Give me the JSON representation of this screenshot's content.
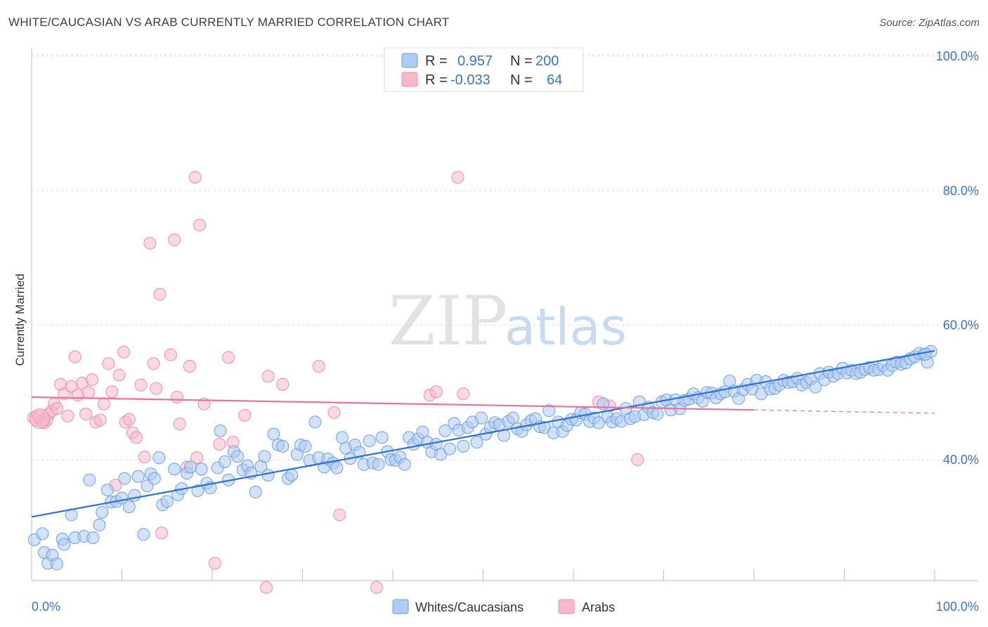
{
  "header": {
    "title": "WHITE/CAUCASIAN VS ARAB CURRENTLY MARRIED CORRELATION CHART",
    "source": "Source: ZipAtlas.com"
  },
  "watermark": {
    "zip": "ZIP",
    "atlas": "atlas"
  },
  "legend": {
    "rows": [
      {
        "r_label": "R =",
        "r_value": "0.957",
        "n_label": "N =",
        "n_value": "200",
        "color": "#aecbf2"
      },
      {
        "r_label": "R =",
        "r_value": "-0.033",
        "n_label": "N =",
        "n_value": "64",
        "color": "#f7b8cb"
      }
    ]
  },
  "bottom_legend": [
    {
      "label": "Whites/Caucasians",
      "color": "#aecbf2"
    },
    {
      "label": "Arabs",
      "color": "#f7b8cb"
    }
  ],
  "colors": {
    "blue_fill": "#aecbf2",
    "blue_stroke": "#6c9fe0",
    "blue_line": "#2f6fcf",
    "pink_fill": "#f7b8cb",
    "pink_stroke": "#ec8dab",
    "pink_line": "#e8729a",
    "tick_text": "#3b73c8",
    "grid": "#d9d9d9"
  },
  "chart_data": {
    "type": "scatter",
    "title": "WHITE/CAUCASIAN VS ARAB CURRENTLY MARRIED CORRELATION CHART",
    "xlabel": "",
    "ylabel": "Currently Married",
    "xlim": [
      0,
      100
    ],
    "ylim": [
      20,
      102
    ],
    "x_tick_labels": [
      "0.0%",
      "100.0%"
    ],
    "y_ticks": [
      40,
      60,
      80,
      100
    ],
    "y_tick_labels": [
      "40.0%",
      "60.0%",
      "80.0%",
      "100.0%"
    ],
    "grid": true,
    "legend_position": "top-center",
    "series": [
      {
        "name": "Whites/Caucasians",
        "R": 0.957,
        "N": 200,
        "trend": {
          "x": [
            0,
            100
          ],
          "y": [
            31.5,
            56.2
          ]
        },
        "points": [
          [
            0.3,
            28.1
          ],
          [
            1.2,
            29.0
          ],
          [
            1.4,
            26.2
          ],
          [
            1.8,
            24.6
          ],
          [
            2.3,
            25.8
          ],
          [
            2.8,
            24.5
          ],
          [
            3.4,
            28.2
          ],
          [
            3.6,
            27.4
          ],
          [
            4.4,
            31.8
          ],
          [
            4.8,
            28.4
          ],
          [
            5.8,
            28.6
          ],
          [
            6.4,
            37.0
          ],
          [
            6.8,
            28.4
          ],
          [
            7.5,
            30.3
          ],
          [
            7.8,
            32.2
          ],
          [
            8.4,
            35.5
          ],
          [
            8.8,
            33.7
          ],
          [
            9.4,
            33.8
          ],
          [
            10.0,
            34.3
          ],
          [
            10.3,
            37.2
          ],
          [
            10.8,
            33.0
          ],
          [
            11.4,
            34.7
          ],
          [
            11.8,
            37.5
          ],
          [
            12.4,
            28.9
          ],
          [
            12.8,
            36.1
          ],
          [
            13.2,
            37.9
          ],
          [
            13.6,
            37.2
          ],
          [
            14.1,
            40.3
          ],
          [
            14.5,
            33.3
          ],
          [
            15.0,
            33.8
          ],
          [
            15.8,
            38.6
          ],
          [
            16.2,
            34.8
          ],
          [
            16.6,
            35.7
          ],
          [
            17.2,
            38.0
          ],
          [
            17.6,
            38.9
          ],
          [
            18.4,
            35.4
          ],
          [
            18.8,
            38.6
          ],
          [
            19.4,
            36.5
          ],
          [
            19.8,
            35.8
          ],
          [
            20.6,
            38.8
          ],
          [
            20.9,
            44.3
          ],
          [
            21.4,
            39.7
          ],
          [
            21.8,
            37.0
          ],
          [
            22.4,
            41.2
          ],
          [
            22.8,
            40.5
          ],
          [
            23.4,
            38.5
          ],
          [
            23.9,
            39.1
          ],
          [
            24.3,
            38.0
          ],
          [
            24.8,
            35.2
          ],
          [
            25.4,
            39.0
          ],
          [
            25.8,
            40.5
          ],
          [
            26.2,
            37.7
          ],
          [
            26.8,
            43.8
          ],
          [
            27.3,
            42.2
          ],
          [
            27.8,
            42.0
          ],
          [
            28.4,
            37.2
          ],
          [
            28.8,
            37.7
          ],
          [
            29.4,
            40.8
          ],
          [
            29.8,
            42.2
          ],
          [
            30.3,
            42.0
          ],
          [
            30.8,
            39.9
          ],
          [
            31.4,
            45.6
          ],
          [
            31.8,
            40.3
          ],
          [
            32.4,
            38.9
          ],
          [
            32.8,
            40.1
          ],
          [
            33.4,
            39.5
          ],
          [
            33.8,
            38.8
          ],
          [
            34.4,
            43.3
          ],
          [
            34.8,
            41.7
          ],
          [
            35.3,
            40.2
          ],
          [
            35.8,
            42.2
          ],
          [
            36.3,
            41.1
          ],
          [
            36.8,
            39.3
          ],
          [
            37.4,
            42.8
          ],
          [
            37.8,
            39.5
          ],
          [
            38.4,
            39.3
          ],
          [
            38.8,
            43.3
          ],
          [
            39.4,
            41.2
          ],
          [
            39.8,
            40.0
          ],
          [
            40.3,
            39.9
          ],
          [
            40.8,
            40.4
          ],
          [
            41.3,
            39.3
          ],
          [
            41.8,
            43.3
          ],
          [
            42.3,
            42.3
          ],
          [
            42.8,
            43.1
          ],
          [
            43.3,
            44.1
          ],
          [
            43.8,
            42.6
          ],
          [
            44.3,
            41.2
          ],
          [
            44.8,
            42.3
          ],
          [
            45.3,
            40.8
          ],
          [
            45.8,
            44.3
          ],
          [
            46.3,
            41.6
          ],
          [
            46.8,
            45.4
          ],
          [
            47.3,
            44.4
          ],
          [
            47.8,
            42.0
          ],
          [
            48.3,
            44.8
          ],
          [
            48.8,
            45.6
          ],
          [
            49.3,
            42.6
          ],
          [
            49.8,
            46.2
          ],
          [
            50.3,
            43.8
          ],
          [
            50.8,
            44.8
          ],
          [
            51.3,
            45.5
          ],
          [
            51.8,
            45.2
          ],
          [
            52.3,
            43.6
          ],
          [
            52.8,
            45.7
          ],
          [
            53.3,
            46.2
          ],
          [
            53.8,
            44.6
          ],
          [
            54.3,
            44.2
          ],
          [
            54.8,
            45.2
          ],
          [
            55.3,
            45.8
          ],
          [
            55.8,
            46.1
          ],
          [
            56.3,
            44.9
          ],
          [
            56.8,
            44.8
          ],
          [
            57.3,
            47.3
          ],
          [
            57.8,
            44.0
          ],
          [
            58.3,
            45.6
          ],
          [
            58.8,
            44.2
          ],
          [
            59.3,
            45.1
          ],
          [
            59.8,
            46.0
          ],
          [
            60.3,
            45.9
          ],
          [
            60.8,
            47.0
          ],
          [
            61.3,
            46.8
          ],
          [
            61.8,
            45.7
          ],
          [
            62.3,
            46.2
          ],
          [
            62.8,
            45.5
          ],
          [
            63.3,
            48.3
          ],
          [
            63.8,
            46.4
          ],
          [
            64.3,
            45.6
          ],
          [
            64.8,
            46.1
          ],
          [
            65.3,
            45.7
          ],
          [
            65.8,
            47.6
          ],
          [
            66.3,
            46.1
          ],
          [
            66.8,
            46.4
          ],
          [
            67.3,
            48.6
          ],
          [
            67.8,
            46.7
          ],
          [
            68.3,
            47.8
          ],
          [
            68.8,
            47.0
          ],
          [
            69.3,
            46.8
          ],
          [
            69.8,
            48.6
          ],
          [
            70.3,
            48.9
          ],
          [
            70.8,
            47.4
          ],
          [
            71.3,
            48.9
          ],
          [
            71.8,
            47.6
          ],
          [
            72.3,
            48.8
          ],
          [
            72.8,
            49.0
          ],
          [
            73.3,
            49.8
          ],
          [
            73.8,
            49.2
          ],
          [
            74.3,
            48.7
          ],
          [
            74.8,
            50.0
          ],
          [
            75.3,
            49.9
          ],
          [
            75.8,
            49.2
          ],
          [
            76.3,
            49.8
          ],
          [
            76.8,
            50.1
          ],
          [
            77.3,
            51.7
          ],
          [
            77.8,
            50.2
          ],
          [
            78.3,
            49.1
          ],
          [
            78.8,
            50.4
          ],
          [
            79.3,
            51.2
          ],
          [
            79.8,
            50.5
          ],
          [
            80.3,
            51.8
          ],
          [
            80.8,
            49.8
          ],
          [
            81.3,
            51.6
          ],
          [
            81.8,
            50.5
          ],
          [
            82.3,
            50.6
          ],
          [
            82.8,
            51.1
          ],
          [
            83.3,
            51.8
          ],
          [
            83.8,
            51.5
          ],
          [
            84.3,
            51.6
          ],
          [
            84.8,
            52.1
          ],
          [
            85.3,
            51.1
          ],
          [
            85.8,
            51.5
          ],
          [
            86.3,
            52.0
          ],
          [
            86.8,
            50.8
          ],
          [
            87.3,
            52.8
          ],
          [
            87.8,
            51.9
          ],
          [
            88.3,
            53.0
          ],
          [
            88.8,
            52.4
          ],
          [
            89.3,
            52.8
          ],
          [
            89.8,
            53.6
          ],
          [
            90.3,
            52.9
          ],
          [
            90.8,
            53.3
          ],
          [
            91.3,
            52.8
          ],
          [
            91.8,
            53.0
          ],
          [
            92.3,
            53.4
          ],
          [
            92.8,
            53.7
          ],
          [
            93.3,
            53.3
          ],
          [
            93.8,
            53.4
          ],
          [
            94.3,
            54.0
          ],
          [
            94.8,
            53.3
          ],
          [
            95.3,
            54.0
          ],
          [
            95.8,
            54.5
          ],
          [
            96.3,
            54.2
          ],
          [
            96.8,
            54.4
          ],
          [
            97.3,
            55.0
          ],
          [
            97.8,
            55.3
          ],
          [
            98.3,
            55.8
          ],
          [
            98.8,
            55.6
          ],
          [
            99.2,
            54.5
          ],
          [
            99.6,
            56.1
          ],
          [
            99.0,
            55.7
          ]
        ]
      },
      {
        "name": "Arabs",
        "R": -0.033,
        "N": 64,
        "trend": {
          "x": [
            0,
            80
          ],
          "y": [
            49.3,
            47.4
          ],
          "dashed_to": [
            100,
            46.9
          ]
        },
        "points": [
          [
            0.2,
            46.2
          ],
          [
            0.5,
            45.9
          ],
          [
            0.8,
            46.4
          ],
          [
            1.1,
            45.8
          ],
          [
            1.4,
            45.5
          ],
          [
            1.7,
            45.9
          ],
          [
            1.9,
            46.8
          ],
          [
            2.2,
            47.2
          ],
          [
            2.5,
            48.3
          ],
          [
            2.8,
            47.6
          ],
          [
            3.2,
            51.2
          ],
          [
            3.6,
            49.8
          ],
          [
            4.0,
            46.5
          ],
          [
            4.4,
            50.9
          ],
          [
            4.8,
            55.3
          ],
          [
            5.1,
            49.6
          ],
          [
            5.6,
            51.4
          ],
          [
            6.0,
            46.8
          ],
          [
            6.3,
            50.0
          ],
          [
            6.7,
            51.9
          ],
          [
            7.1,
            45.6
          ],
          [
            7.6,
            45.9
          ],
          [
            8.0,
            48.3
          ],
          [
            8.5,
            54.3
          ],
          [
            8.9,
            50.1
          ],
          [
            9.3,
            36.2
          ],
          [
            9.7,
            52.6
          ],
          [
            10.2,
            56.0
          ],
          [
            10.4,
            45.6
          ],
          [
            10.8,
            46.0
          ],
          [
            11.2,
            44.0
          ],
          [
            11.6,
            43.3
          ],
          [
            12.1,
            51.1
          ],
          [
            12.5,
            40.4
          ],
          [
            13.1,
            72.2
          ],
          [
            13.5,
            54.3
          ],
          [
            13.8,
            50.6
          ],
          [
            14.2,
            64.6
          ],
          [
            14.4,
            29.1
          ],
          [
            15.4,
            55.6
          ],
          [
            15.8,
            72.7
          ],
          [
            16.1,
            49.3
          ],
          [
            16.4,
            45.3
          ],
          [
            17.2,
            38.9
          ],
          [
            17.5,
            53.9
          ],
          [
            18.1,
            82.0
          ],
          [
            18.3,
            40.3
          ],
          [
            18.6,
            74.9
          ],
          [
            19.1,
            48.3
          ],
          [
            20.3,
            24.6
          ],
          [
            20.8,
            42.3
          ],
          [
            21.8,
            55.2
          ],
          [
            22.3,
            42.6
          ],
          [
            23.6,
            46.6
          ],
          [
            26.0,
            21.0
          ],
          [
            26.2,
            52.4
          ],
          [
            27.8,
            51.2
          ],
          [
            31.8,
            53.9
          ],
          [
            33.5,
            47.0
          ],
          [
            34.1,
            31.8
          ],
          [
            38.2,
            21.0
          ],
          [
            44.1,
            49.6
          ],
          [
            44.8,
            50.1
          ],
          [
            47.2,
            82.0
          ],
          [
            47.8,
            49.8
          ],
          [
            62.8,
            48.6
          ],
          [
            64.0,
            48.0
          ],
          [
            67.1,
            40.0
          ]
        ]
      }
    ]
  }
}
